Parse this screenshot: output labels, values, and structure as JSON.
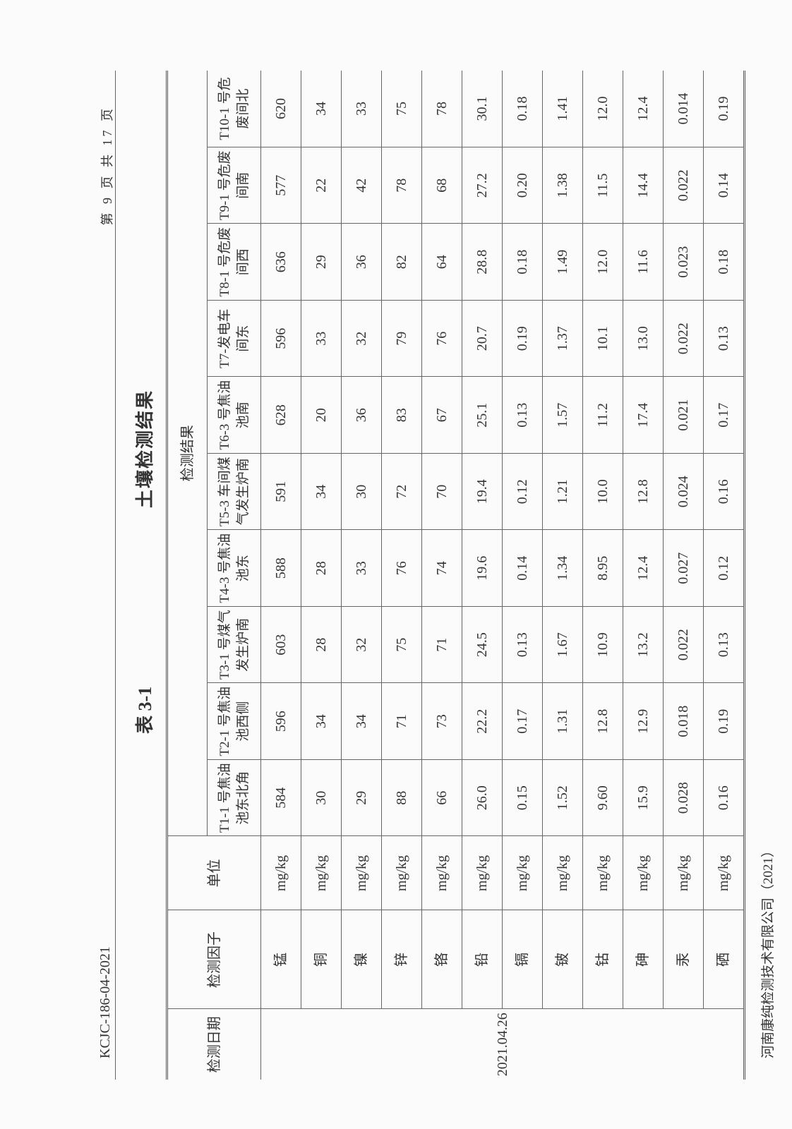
{
  "header": {
    "doc_code": "KCJC-186-04-2021",
    "page_no": "第 9 页 共 17 页"
  },
  "title": {
    "table_no": "表 3-1",
    "table_title": "土壤检测结果"
  },
  "table": {
    "col_date": "检测日期",
    "col_factor": "检测因子",
    "col_unit": "单位",
    "col_results": "检测结果",
    "date": "2021.04.26",
    "samples": [
      "T1-1 号焦油池东北角",
      "T2-1 号焦油池西侧",
      "T3-1 号煤气发生炉南",
      "T4-3 号焦油池东",
      "T5-3 车间煤气发生炉南",
      "T6-3 号焦油池南",
      "T7-发电车间东",
      "T8-1 号危废间西",
      "T9-1 号危废间南",
      "T10-1 号危废间北"
    ],
    "rows": [
      {
        "factor": "锰",
        "unit": "mg/kg",
        "values": [
          "584",
          "596",
          "603",
          "588",
          "591",
          "628",
          "596",
          "636",
          "577",
          "620"
        ]
      },
      {
        "factor": "铜",
        "unit": "mg/kg",
        "values": [
          "30",
          "34",
          "28",
          "28",
          "34",
          "20",
          "33",
          "29",
          "22",
          "34"
        ]
      },
      {
        "factor": "镍",
        "unit": "mg/kg",
        "values": [
          "29",
          "34",
          "32",
          "33",
          "30",
          "36",
          "32",
          "36",
          "42",
          "33"
        ]
      },
      {
        "factor": "锌",
        "unit": "mg/kg",
        "values": [
          "88",
          "71",
          "75",
          "76",
          "72",
          "83",
          "79",
          "82",
          "78",
          "75"
        ]
      },
      {
        "factor": "铬",
        "unit": "mg/kg",
        "values": [
          "66",
          "73",
          "71",
          "74",
          "70",
          "67",
          "76",
          "64",
          "68",
          "78"
        ]
      },
      {
        "factor": "铅",
        "unit": "mg/kg",
        "values": [
          "26.0",
          "22.2",
          "24.5",
          "19.6",
          "19.4",
          "25.1",
          "20.7",
          "28.8",
          "27.2",
          "30.1"
        ]
      },
      {
        "factor": "镉",
        "unit": "mg/kg",
        "values": [
          "0.15",
          "0.17",
          "0.13",
          "0.14",
          "0.12",
          "0.13",
          "0.19",
          "0.18",
          "0.20",
          "0.18"
        ]
      },
      {
        "factor": "铍",
        "unit": "mg/kg",
        "values": [
          "1.52",
          "1.31",
          "1.67",
          "1.34",
          "1.21",
          "1.57",
          "1.37",
          "1.49",
          "1.38",
          "1.41"
        ]
      },
      {
        "factor": "钴",
        "unit": "mg/kg",
        "values": [
          "9.60",
          "12.8",
          "10.9",
          "8.95",
          "10.0",
          "11.2",
          "10.1",
          "12.0",
          "11.5",
          "12.0"
        ]
      },
      {
        "factor": "砷",
        "unit": "mg/kg",
        "values": [
          "15.9",
          "12.9",
          "13.2",
          "12.4",
          "12.8",
          "17.4",
          "13.0",
          "11.6",
          "14.4",
          "12.4"
        ]
      },
      {
        "factor": "汞",
        "unit": "mg/kg",
        "values": [
          "0.028",
          "0.018",
          "0.022",
          "0.027",
          "0.024",
          "0.021",
          "0.022",
          "0.023",
          "0.022",
          "0.014"
        ]
      },
      {
        "factor": "硒",
        "unit": "mg/kg",
        "values": [
          "0.16",
          "0.19",
          "0.13",
          "0.12",
          "0.16",
          "0.17",
          "0.13",
          "0.18",
          "0.14",
          "0.19"
        ]
      }
    ]
  },
  "footer": {
    "company": "河南康纯检测技术有限公司（2021）"
  }
}
